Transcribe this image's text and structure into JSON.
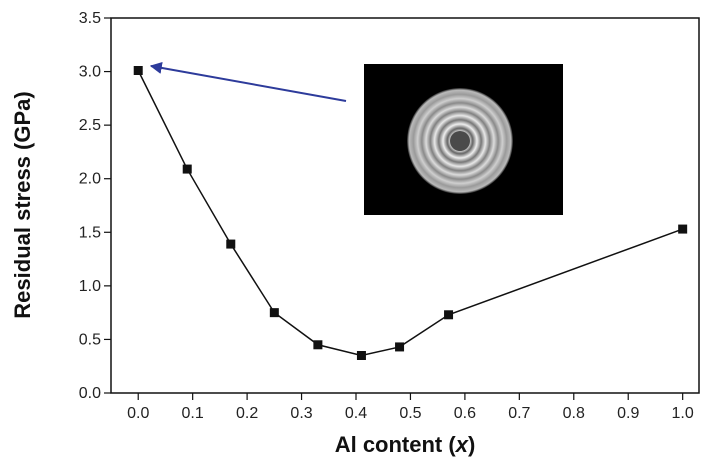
{
  "chart_data": {
    "type": "line",
    "xlabel_main": "Al content (",
    "xlabel_var": "x",
    "xlabel_end": ")",
    "ylabel": "Residual stress (GPa)",
    "xlim": [
      -0.05,
      1.03
    ],
    "ylim": [
      0.0,
      3.5
    ],
    "x_ticks": [
      0.0,
      0.1,
      0.2,
      0.3,
      0.4,
      0.5,
      0.6,
      0.7,
      0.8,
      0.9,
      1.0
    ],
    "y_ticks": [
      0.0,
      0.5,
      1.0,
      1.5,
      2.0,
      2.5,
      3.0,
      3.5
    ],
    "grid": false,
    "series": [
      {
        "x": [
          0.0,
          0.09,
          0.17,
          0.25,
          0.33,
          0.41,
          0.48,
          0.57,
          1.0
        ],
        "y": [
          3.01,
          2.09,
          1.39,
          0.75,
          0.45,
          0.35,
          0.43,
          0.73,
          1.53
        ]
      }
    ],
    "annotation": {
      "type": "arrow-to-inset",
      "target_point_index": 0,
      "arrow_color": "#2d3b9b",
      "inset": "circular-ring-pattern-image"
    }
  },
  "colors": {
    "line": "#111111",
    "marker": "#111111",
    "arrow": "#2d3b9b",
    "inset_bg": "#000000"
  }
}
